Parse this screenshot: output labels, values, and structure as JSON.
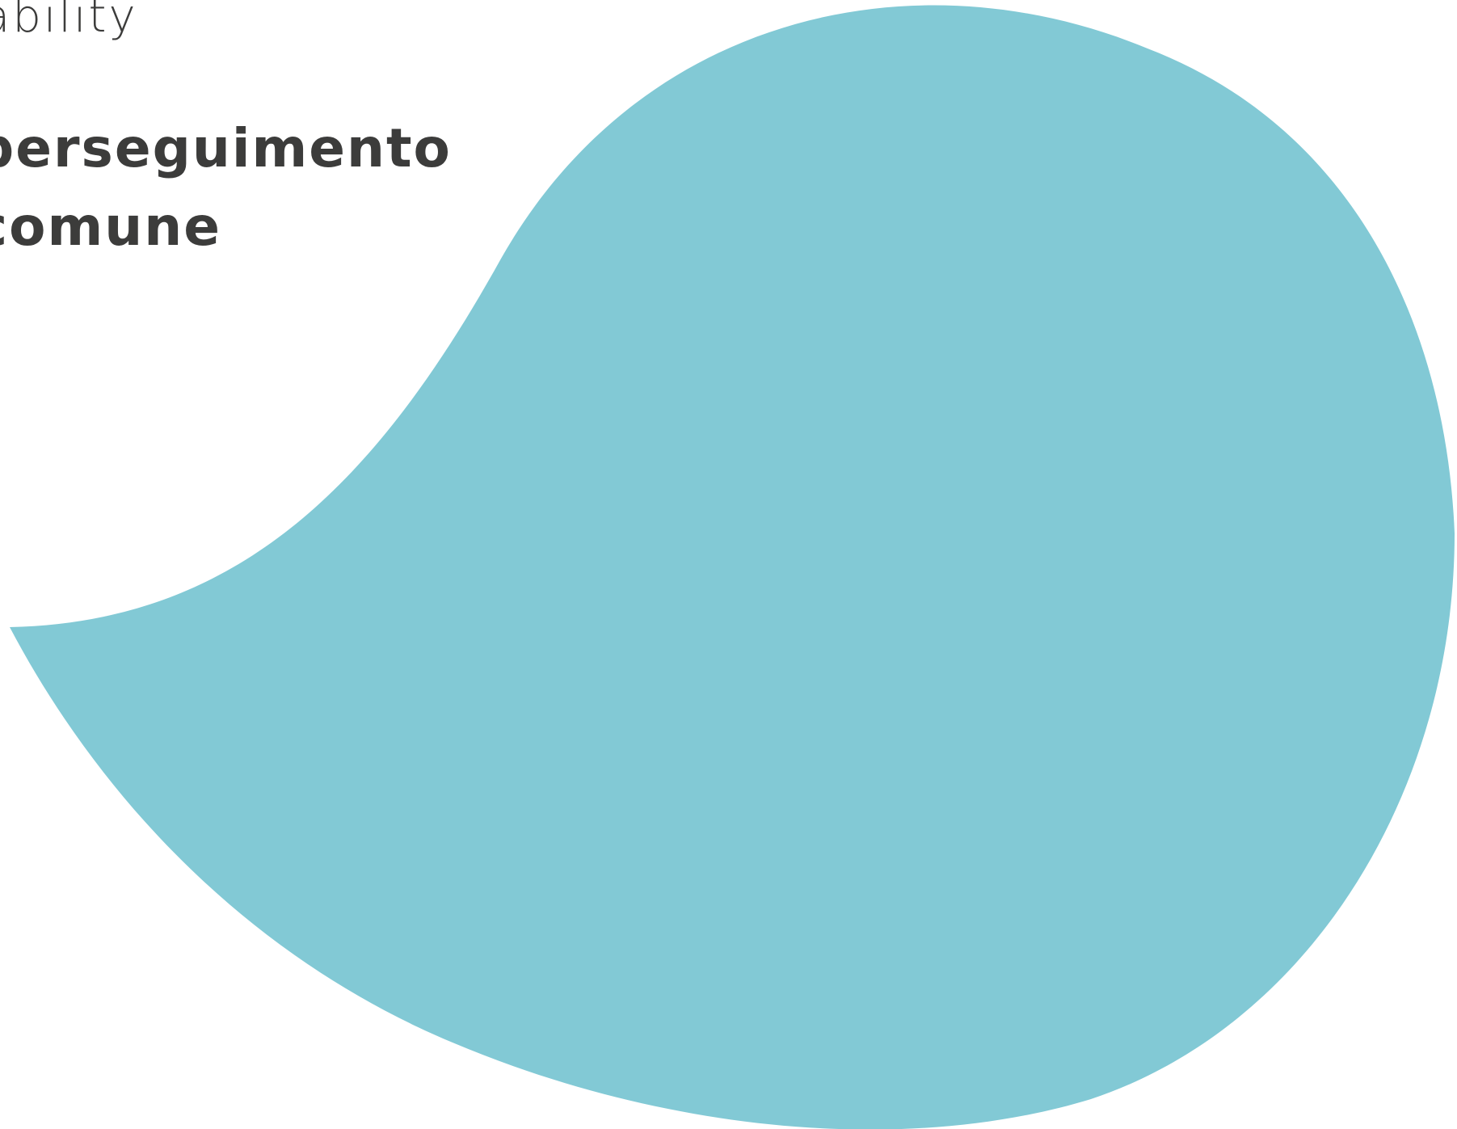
{
  "header": {
    "kicker": "ability"
  },
  "headline": {
    "line1": "perseguimento",
    "line2": "comune"
  },
  "colors": {
    "text": "#3c3c3b",
    "blob": "#82c9d5",
    "background": "#ffffff"
  }
}
